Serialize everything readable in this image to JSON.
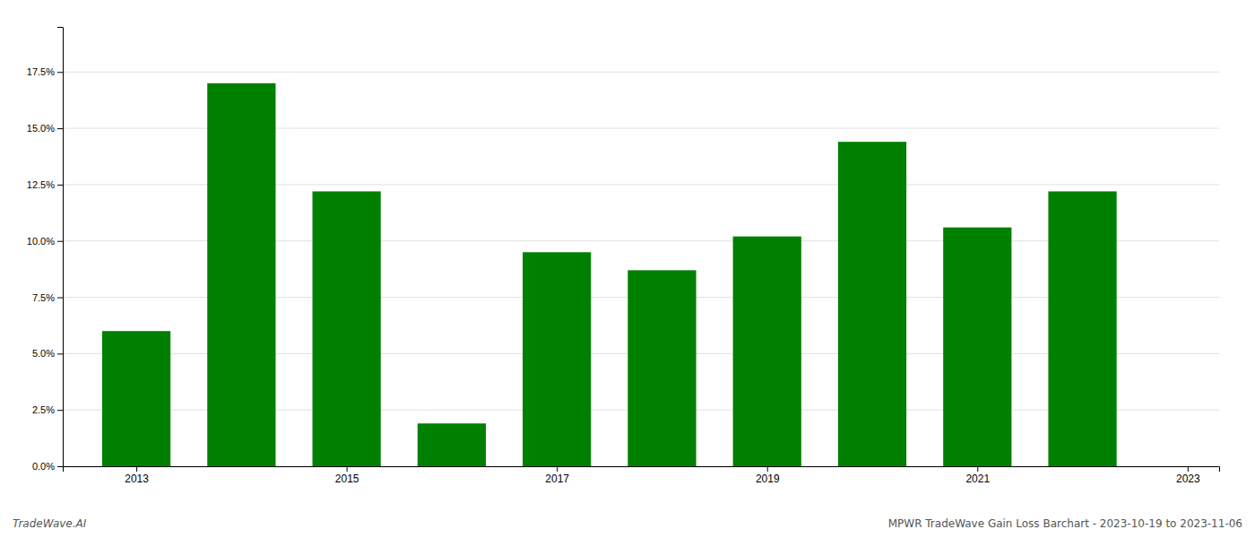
{
  "chart_data": {
    "type": "bar",
    "x": [
      2013,
      2014,
      2015,
      2016,
      2017,
      2018,
      2019,
      2020,
      2021,
      2022
    ],
    "values": [
      0.06,
      0.17,
      0.122,
      0.019,
      0.095,
      0.087,
      0.102,
      0.144,
      0.106,
      0.122
    ],
    "color": "#008000",
    "xlim": [
      2012.3,
      2023.3
    ],
    "xticks": [
      2013,
      2015,
      2017,
      2019,
      2021,
      2023
    ],
    "ylim": [
      0,
      0.195
    ],
    "yticks": [
      {
        "value": 0.0,
        "label": "0.0%"
      },
      {
        "value": 0.025,
        "label": "2.5%"
      },
      {
        "value": 0.05,
        "label": "5.0%"
      },
      {
        "value": 0.075,
        "label": "7.5%"
      },
      {
        "value": 0.1,
        "label": "10.0%"
      },
      {
        "value": 0.125,
        "label": "12.5%"
      },
      {
        "value": 0.15,
        "label": "15.0%"
      },
      {
        "value": 0.175,
        "label": "17.5%"
      }
    ],
    "grid": true,
    "annotations": [
      "TradeWave.AI",
      "MPWR TradeWave Gain Loss Barchart - 2023-10-19 to 2023-11-06"
    ]
  }
}
